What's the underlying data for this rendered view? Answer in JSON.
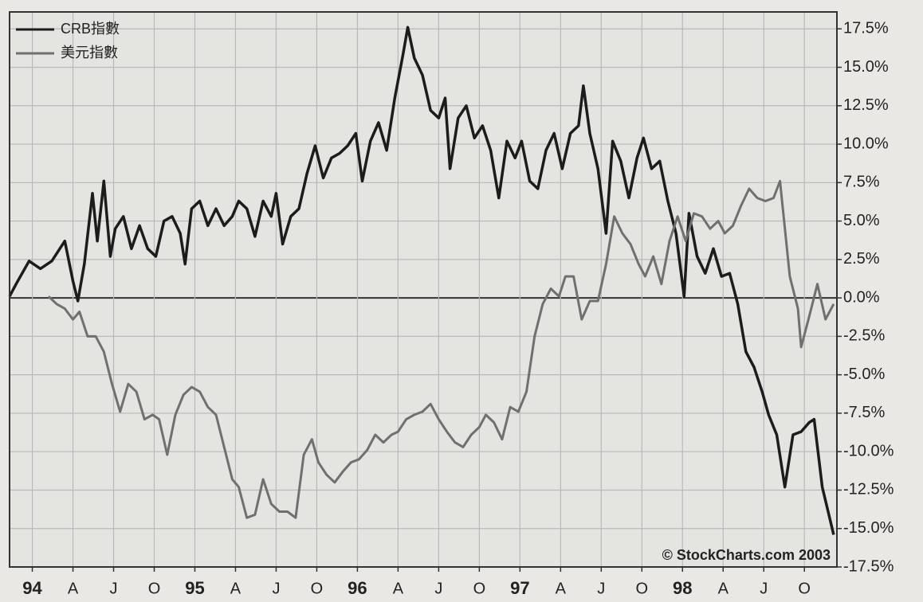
{
  "chart_data": {
    "type": "line",
    "annotation": "© StockCharts.com 2003",
    "legend": "top-left",
    "grid": true,
    "xlim": [
      93.86,
      98.95
    ],
    "ylim": [
      -17.5,
      18.6
    ],
    "xticks": [
      94,
      {
        "value": 94.25,
        "label": "A"
      },
      {
        "value": 94.5,
        "label": "J"
      },
      {
        "value": 94.75,
        "label": "O"
      },
      95,
      {
        "value": 95.25,
        "label": "A"
      },
      {
        "value": 95.5,
        "label": "J"
      },
      {
        "value": 95.75,
        "label": "O"
      },
      96,
      {
        "value": 96.25,
        "label": "A"
      },
      {
        "value": 96.5,
        "label": "J"
      },
      {
        "value": 96.75,
        "label": "O"
      },
      97,
      {
        "value": 97.25,
        "label": "A"
      },
      {
        "value": 97.5,
        "label": "J"
      },
      {
        "value": 97.75,
        "label": "O"
      },
      98,
      {
        "value": 98.25,
        "label": "A"
      },
      {
        "value": 98.5,
        "label": "J"
      },
      {
        "value": 98.75,
        "label": "O"
      }
    ],
    "yticks": [
      {
        "value": 17.5,
        "label": "17.5%"
      },
      {
        "value": 15,
        "label": "15.0%"
      },
      {
        "value": 12.5,
        "label": "12.5%"
      },
      {
        "value": 10,
        "label": "10.0%"
      },
      {
        "value": 7.5,
        "label": "7.5%"
      },
      {
        "value": 5,
        "label": "5.0%"
      },
      {
        "value": 2.5,
        "label": "2.5%"
      },
      {
        "value": 0,
        "label": "0.0%"
      },
      {
        "value": -2.5,
        "label": "-2.5%"
      },
      {
        "value": -5,
        "label": "-5.0%"
      },
      {
        "value": -7.5,
        "label": "-7.5%"
      },
      {
        "value": -10,
        "label": "-10.0%"
      },
      {
        "value": -12.5,
        "label": "-12.5%"
      },
      {
        "value": -15,
        "label": "-15.0%"
      },
      {
        "value": -17.5,
        "label": "-17.5%"
      }
    ],
    "series": [
      {
        "name": "CRB指數",
        "color": "#1c1c1c",
        "x": [
          93.86,
          93.9,
          93.98,
          94.05,
          94.12,
          94.2,
          94.25,
          94.28,
          94.32,
          94.37,
          94.4,
          94.44,
          94.48,
          94.51,
          94.56,
          94.61,
          94.66,
          94.71,
          94.76,
          94.81,
          94.86,
          94.91,
          94.94,
          94.98,
          95.03,
          95.08,
          95.13,
          95.18,
          95.23,
          95.27,
          95.32,
          95.37,
          95.42,
          95.47,
          95.5,
          95.54,
          95.59,
          95.64,
          95.69,
          95.74,
          95.79,
          95.84,
          95.89,
          95.94,
          95.99,
          96.03,
          96.08,
          96.13,
          96.18,
          96.23,
          96.28,
          96.31,
          96.35,
          96.4,
          96.45,
          96.5,
          96.54,
          96.57,
          96.62,
          96.67,
          96.72,
          96.77,
          96.82,
          96.87,
          96.92,
          96.97,
          97.01,
          97.06,
          97.11,
          97.16,
          97.21,
          97.26,
          97.31,
          97.36,
          97.39,
          97.43,
          97.48,
          97.53,
          97.57,
          97.62,
          97.67,
          97.72,
          97.76,
          97.81,
          97.86,
          97.91,
          97.96,
          98.01,
          98.04,
          98.09,
          98.14,
          98.19,
          98.24,
          98.29,
          98.34,
          98.39,
          98.44,
          98.49,
          98.53,
          98.58,
          98.63,
          98.68,
          98.73,
          98.78,
          98.81,
          98.86,
          98.93
        ],
        "values": [
          0.1,
          0.9,
          2.4,
          1.9,
          2.4,
          3.7,
          1.1,
          -0.2,
          2.2,
          6.8,
          3.7,
          7.6,
          2.7,
          4.5,
          5.3,
          3.2,
          4.7,
          3.2,
          2.7,
          5.0,
          5.3,
          4.2,
          2.2,
          5.8,
          6.3,
          4.7,
          5.8,
          4.7,
          5.3,
          6.3,
          5.8,
          4.0,
          6.3,
          5.3,
          6.8,
          3.5,
          5.3,
          5.8,
          8.1,
          9.9,
          7.8,
          9.1,
          9.4,
          9.9,
          10.7,
          7.6,
          10.2,
          11.4,
          9.6,
          13.0,
          15.8,
          17.6,
          15.6,
          14.5,
          12.2,
          11.7,
          13.0,
          8.4,
          11.7,
          12.5,
          10.4,
          11.2,
          9.6,
          6.5,
          10.2,
          9.1,
          10.2,
          7.6,
          7.1,
          9.6,
          10.7,
          8.4,
          10.7,
          11.2,
          13.8,
          10.7,
          8.4,
          4.2,
          10.2,
          8.9,
          6.5,
          9.1,
          10.4,
          8.4,
          8.9,
          6.3,
          4.2,
          0.1,
          5.5,
          2.7,
          1.6,
          3.2,
          1.4,
          1.6,
          -0.4,
          -3.5,
          -4.5,
          -6.1,
          -7.6,
          -8.9,
          -12.3,
          -8.9,
          -8.7,
          -8.1,
          -7.9,
          -12.3,
          -15.4
        ]
      },
      {
        "name": "美元指數",
        "color": "#707070",
        "x": [
          94.1,
          94.15,
          94.2,
          94.25,
          94.29,
          94.34,
          94.39,
          94.44,
          94.49,
          94.54,
          94.59,
          94.64,
          94.69,
          94.74,
          94.78,
          94.83,
          94.88,
          94.93,
          94.98,
          95.03,
          95.08,
          95.13,
          95.18,
          95.23,
          95.27,
          95.32,
          95.37,
          95.42,
          95.47,
          95.52,
          95.57,
          95.62,
          95.67,
          95.72,
          95.76,
          95.81,
          95.86,
          95.91,
          95.96,
          96.01,
          96.06,
          96.11,
          96.16,
          96.21,
          96.25,
          96.3,
          96.35,
          96.4,
          96.45,
          96.5,
          96.55,
          96.6,
          96.65,
          96.7,
          96.75,
          96.79,
          96.84,
          96.89,
          96.94,
          96.99,
          97.04,
          97.09,
          97.14,
          97.19,
          97.24,
          97.28,
          97.33,
          97.38,
          97.43,
          97.48,
          97.53,
          97.58,
          97.63,
          97.68,
          97.73,
          97.77,
          97.82,
          97.87,
          97.92,
          97.97,
          98.02,
          98.07,
          98.12,
          98.17,
          98.22,
          98.26,
          98.31,
          98.36,
          98.41,
          98.46,
          98.51,
          98.56,
          98.6,
          98.66,
          98.71,
          98.73,
          98.78,
          98.83,
          98.88,
          98.93
        ],
        "values": [
          0.1,
          -0.4,
          -0.7,
          -1.4,
          -0.9,
          -2.5,
          -2.5,
          -3.5,
          -5.6,
          -7.4,
          -5.6,
          -6.1,
          -7.9,
          -7.6,
          -7.9,
          -10.2,
          -7.6,
          -6.3,
          -5.8,
          -6.1,
          -7.1,
          -7.6,
          -9.7,
          -11.8,
          -12.3,
          -14.3,
          -14.1,
          -11.8,
          -13.4,
          -13.9,
          -13.9,
          -14.3,
          -10.2,
          -9.2,
          -10.7,
          -11.5,
          -12.0,
          -11.3,
          -10.7,
          -10.5,
          -9.9,
          -8.9,
          -9.4,
          -8.9,
          -8.7,
          -7.9,
          -7.6,
          -7.4,
          -6.9,
          -7.9,
          -8.7,
          -9.4,
          -9.7,
          -8.9,
          -8.4,
          -7.6,
          -8.1,
          -9.2,
          -7.1,
          -7.4,
          -6.1,
          -2.5,
          -0.4,
          0.6,
          0.1,
          1.4,
          1.4,
          -1.4,
          -0.2,
          -0.2,
          2.2,
          5.3,
          4.2,
          3.5,
          2.2,
          1.4,
          2.7,
          0.9,
          3.7,
          5.3,
          3.7,
          5.5,
          5.3,
          4.5,
          5.0,
          4.2,
          4.7,
          6.0,
          7.1,
          6.5,
          6.3,
          6.5,
          7.6,
          1.4,
          -0.7,
          -3.2,
          -1.2,
          0.9,
          -1.4,
          -0.4
        ]
      }
    ]
  }
}
